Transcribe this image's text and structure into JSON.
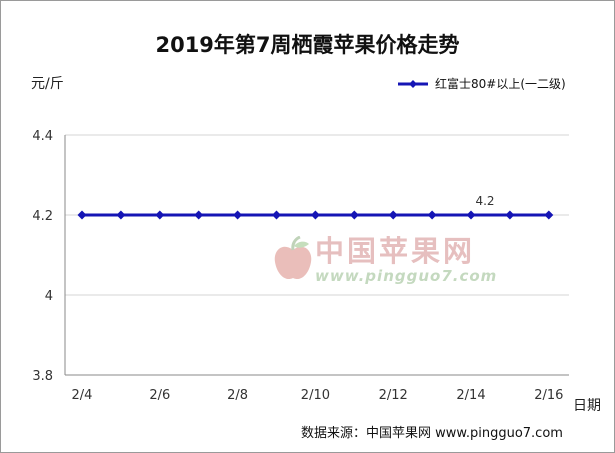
{
  "chart_data": {
    "type": "line",
    "title": "2019年第7周栖霞苹果价格走势",
    "ylabel": "元/斤",
    "xlabel": "日期",
    "ylim": [
      3.8,
      4.4
    ],
    "yticks": [
      3.8,
      4,
      4.2,
      4.4
    ],
    "ytick_labels": [
      "3.8",
      "4",
      "4.2",
      "4.4"
    ],
    "xtick_labels": [
      "2/4",
      "2/6",
      "2/8",
      "2/10",
      "2/12",
      "2/14",
      "2/16"
    ],
    "grid": true,
    "legend_position": "top-right",
    "series": [
      {
        "name": "红富士80#以上(一二级)",
        "color": "#1515b5",
        "marker": "diamond",
        "values": [
          4.2,
          4.2,
          4.2,
          4.2,
          4.2,
          4.2,
          4.2,
          4.2,
          4.2,
          4.2,
          4.2,
          4.2,
          4.2
        ]
      }
    ],
    "annotations": [
      {
        "point_index": 10,
        "text": "4.2"
      }
    ]
  },
  "watermark": {
    "text": "中国苹果网",
    "url": "www.pingguo7.com",
    "logo": "apple-logo"
  },
  "source": "数据来源：中国苹果网 www.pingguo7.com"
}
